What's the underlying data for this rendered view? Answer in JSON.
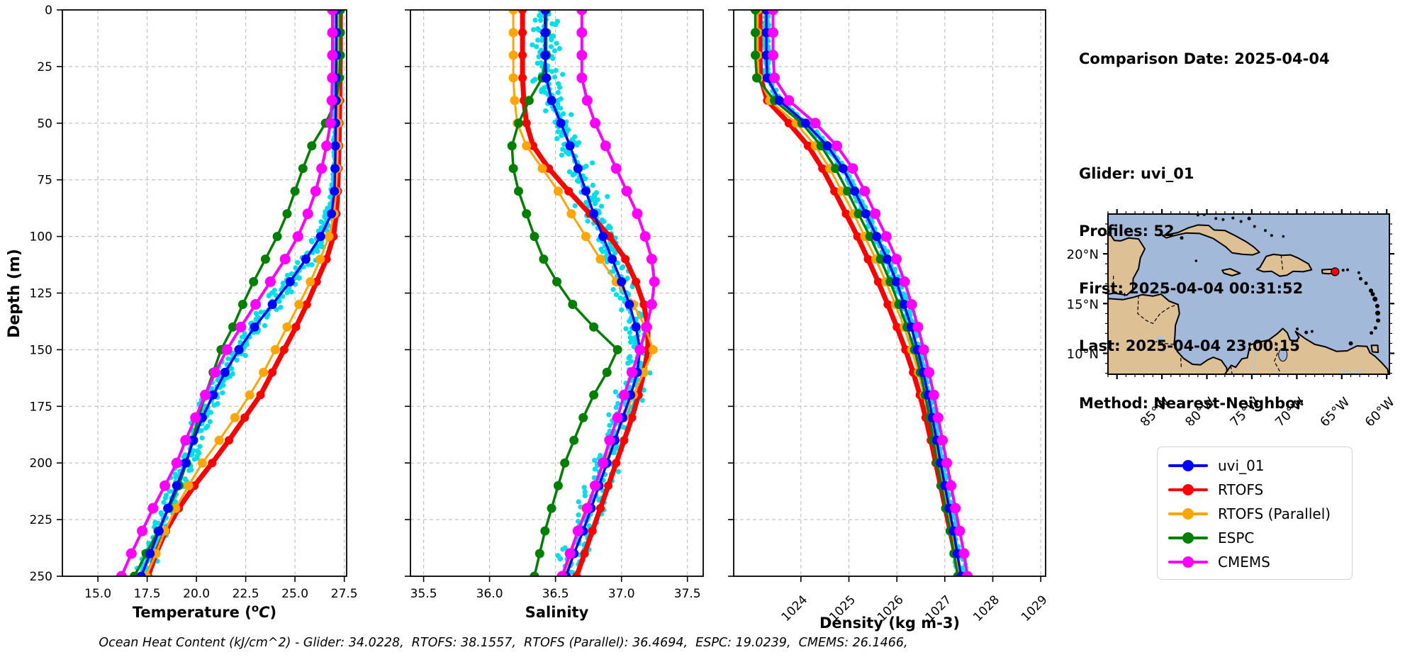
{
  "info_panel": {
    "comparison_date": "Comparison Date: 2025-04-04",
    "glider": "Glider: uvi_01",
    "profiles": "Profiles: 52",
    "first": "First: 2025-04-04 00:31:52",
    "last": "Last: 2025-04-04 23:00:15",
    "method": "Method: Nearest-Neighbor"
  },
  "legend": {
    "entries": [
      {
        "label": "uvi_01",
        "color": "#0000ff"
      },
      {
        "label": "RTOFS",
        "color": "#ff0000"
      },
      {
        "label": "RTOFS (Parallel)",
        "color": "#ffa500"
      },
      {
        "label": "ESPC",
        "color": "#008000"
      },
      {
        "label": "CMEMS",
        "color": "#ff00ff"
      }
    ]
  },
  "footer": {
    "caption": "Ocean Heat Content (kJ/cm^2) - Glider: 34.0228,  RTOFS: 38.1557,  RTOFS (Parallel): 36.4694,  ESPC: 19.0239,  CMEMS: 26.1466,"
  },
  "map": {
    "xtick_labels": [
      "85°W",
      "80°W",
      "75°W",
      "70°W",
      "65°W",
      "60°W"
    ],
    "xtick_values": [
      85,
      80,
      75,
      70,
      65,
      60
    ],
    "ytick_labels": [
      "20°N",
      "15°N",
      "10°N"
    ],
    "ytick_values": [
      20,
      15,
      10
    ],
    "ocean_color": "#a2b9da",
    "land_color": "#ddc094",
    "river_color": "#9ec8e8",
    "marker_color": "#ff0000",
    "marker_lon_w": 65.75,
    "marker_lat_n": 18.2
  },
  "chart_data": {
    "type": "line",
    "ylabel": "Depth (m)",
    "depth_lim": [
      0,
      250
    ],
    "depth_ticks": [
      0,
      25,
      50,
      75,
      100,
      125,
      150,
      175,
      200,
      225,
      250
    ],
    "depths": [
      0,
      10,
      20,
      30,
      40,
      50,
      60,
      70,
      80,
      90,
      100,
      110,
      120,
      130,
      140,
      150,
      160,
      170,
      180,
      190,
      200,
      210,
      220,
      230,
      240,
      250
    ],
    "scatter_color": "#00dfe8",
    "scatter_name": "glider-raw-profiles",
    "draw_order": [
      1,
      2,
      3,
      0,
      4
    ],
    "plots": [
      {
        "id": "temperature",
        "xlabel_parts": {
          "pre": "Temperature (",
          "sup": "o",
          "it": "C",
          "post": ")"
        },
        "xlim": [
          13.2,
          27.62
        ],
        "xticks": [
          15.0,
          17.5,
          20.0,
          22.5,
          25.0,
          27.5
        ],
        "xtick_labels": [
          "15.0",
          "17.5",
          "20.0",
          "22.5",
          "25.0",
          "27.5"
        ],
        "rotate_xticklabels": false,
        "scatter": {
          "s0": 0.08,
          "s1": 0.5
        },
        "series": [
          {
            "name": "uvi_01",
            "color": "#0000ff",
            "lw": 3.5,
            "mr": 6.5,
            "values": [
              27.1,
              27.1,
              27.1,
              27.08,
              27.08,
              27.06,
              27.05,
              27.03,
              27.0,
              26.85,
              26.3,
              25.55,
              24.75,
              23.85,
              22.95,
              22.15,
              21.45,
              20.85,
              20.3,
              19.85,
              19.45,
              19.0,
              18.55,
              18.1,
              17.65,
              17.2
            ]
          },
          {
            "name": "RTOFS",
            "color": "#ff0000",
            "lw": 7,
            "mr": 6,
            "values": [
              27.3,
              27.3,
              27.3,
              27.28,
              27.27,
              27.25,
              27.23,
              27.2,
              27.17,
              27.1,
              26.95,
              26.6,
              26.1,
              25.6,
              25.05,
              24.45,
              23.85,
              23.25,
              22.45,
              21.65,
              20.8,
              19.9,
              19.1,
              18.45,
              17.95,
              17.55
            ]
          },
          {
            "name": "RTOFS (Parallel)",
            "color": "#ffa500",
            "lw": 3,
            "mr": 6.5,
            "values": [
              27.22,
              27.22,
              27.22,
              27.21,
              27.2,
              27.19,
              27.17,
              27.14,
              27.08,
              26.98,
              26.72,
              26.28,
              25.78,
              25.2,
              24.6,
              24.0,
              23.4,
              22.7,
              21.95,
              21.15,
              20.3,
              19.6,
              18.95,
              18.4,
              17.95,
              17.45
            ]
          },
          {
            "name": "ESPC",
            "color": "#008000",
            "lw": 3.5,
            "mr": 6.5,
            "values": [
              27.3,
              27.3,
              27.3,
              27.25,
              27.1,
              26.55,
              25.85,
              25.4,
              25.0,
              24.6,
              24.1,
              23.5,
              22.9,
              22.35,
              21.85,
              21.25,
              20.85,
              20.45,
              20.1,
              19.8,
              19.5,
              19.1,
              18.6,
              18.05,
              17.45,
              16.85
            ]
          },
          {
            "name": "CMEMS",
            "color": "#ff00ff",
            "lw": 4,
            "mr": 7.5,
            "values": [
              26.9,
              26.9,
              26.9,
              26.89,
              26.87,
              26.8,
              26.6,
              26.35,
              26.05,
              25.65,
              25.15,
              24.5,
              23.75,
              23.0,
              22.25,
              21.55,
              20.95,
              20.45,
              19.95,
              19.45,
              19.0,
              18.4,
              17.8,
              17.25,
              16.7,
              16.2
            ]
          }
        ]
      },
      {
        "id": "salinity",
        "xlabel": "Salinity",
        "xlim": [
          35.4,
          37.62
        ],
        "xticks": [
          35.5,
          36.0,
          36.5,
          37.0,
          37.5
        ],
        "xtick_labels": [
          "35.5",
          "36.0",
          "36.5",
          "37.0",
          "37.5"
        ],
        "rotate_xticklabels": false,
        "scatter": {
          "s0": 0.1,
          "s1": 0.1
        },
        "series": [
          {
            "name": "uvi_01",
            "color": "#0000ff",
            "lw": 3.5,
            "mr": 6.5,
            "values": [
              36.42,
              36.42,
              36.42,
              36.43,
              36.47,
              36.54,
              36.61,
              36.67,
              36.73,
              36.79,
              36.86,
              36.93,
              37.0,
              37.06,
              37.11,
              37.14,
              37.12,
              37.07,
              37.01,
              36.95,
              36.89,
              36.83,
              36.77,
              36.71,
              36.64,
              36.58
            ]
          },
          {
            "name": "RTOFS",
            "color": "#ff0000",
            "lw": 7,
            "mr": 6,
            "values": [
              36.25,
              36.25,
              36.25,
              36.25,
              36.26,
              36.28,
              36.33,
              36.45,
              36.6,
              36.76,
              36.91,
              37.03,
              37.11,
              37.17,
              37.2,
              37.2,
              37.17,
              37.13,
              37.08,
              37.02,
              36.96,
              36.9,
              36.84,
              36.78,
              36.72,
              36.66
            ]
          },
          {
            "name": "RTOFS (Parallel)",
            "color": "#ffa500",
            "lw": 3,
            "mr": 6.5,
            "values": [
              36.18,
              36.18,
              36.18,
              36.18,
              36.19,
              36.21,
              36.28,
              36.4,
              36.52,
              36.62,
              36.73,
              36.84,
              36.96,
              37.09,
              37.18,
              37.24,
              37.17,
              37.09,
              37.02,
              36.95,
              36.87,
              36.8,
              36.73,
              36.67,
              36.62,
              36.57
            ]
          },
          {
            "name": "ESPC",
            "color": "#008000",
            "lw": 3.5,
            "mr": 6.5,
            "values": [
              36.43,
              36.43,
              36.43,
              36.4,
              36.3,
              36.22,
              36.17,
              36.18,
              36.22,
              36.28,
              36.34,
              36.41,
              36.51,
              36.63,
              36.79,
              36.97,
              36.89,
              36.79,
              36.71,
              36.64,
              36.57,
              36.52,
              36.47,
              36.42,
              36.38,
              36.34
            ]
          },
          {
            "name": "CMEMS",
            "color": "#ff00ff",
            "lw": 4,
            "mr": 7.5,
            "values": [
              36.7,
              36.7,
              36.7,
              36.7,
              36.74,
              36.8,
              36.88,
              36.96,
              37.04,
              37.12,
              37.18,
              37.23,
              37.25,
              37.23,
              37.19,
              37.14,
              37.08,
              37.02,
              36.97,
              36.91,
              36.86,
              36.8,
              36.74,
              36.67,
              36.61,
              36.55
            ]
          }
        ]
      },
      {
        "id": "density",
        "xlabel": "Density (kg m-3)",
        "xlim": [
          1022.6,
          1029.1
        ],
        "xticks": [
          1024,
          1025,
          1026,
          1027,
          1028,
          1029
        ],
        "xtick_labels": [
          "1024",
          "1025",
          "1026",
          "1027",
          "1028",
          "1029"
        ],
        "rotate_xticklabels": true,
        "scatter": {
          "s0": 0.06,
          "s1": 0.11
        },
        "series": [
          {
            "name": "uvi_01",
            "color": "#0000ff",
            "lw": 3.5,
            "mr": 6.5,
            "values": [
              1023.28,
              1023.28,
              1023.28,
              1023.3,
              1023.55,
              1024.1,
              1024.55,
              1024.88,
              1025.12,
              1025.35,
              1025.58,
              1025.8,
              1025.99,
              1026.15,
              1026.3,
              1026.43,
              1026.55,
              1026.65,
              1026.74,
              1026.83,
              1026.91,
              1027.0,
              1027.09,
              1027.18,
              1027.26,
              1027.34
            ]
          },
          {
            "name": "RTOFS",
            "color": "#ff0000",
            "lw": 7,
            "mr": 6,
            "values": [
              1023.15,
              1023.15,
              1023.15,
              1023.16,
              1023.3,
              1023.75,
              1024.15,
              1024.45,
              1024.7,
              1024.94,
              1025.18,
              1025.4,
              1025.61,
              1025.81,
              1026.0,
              1026.18,
              1026.34,
              1026.48,
              1026.6,
              1026.71,
              1026.81,
              1026.91,
              1027.01,
              1027.11,
              1027.21,
              1027.3
            ]
          },
          {
            "name": "RTOFS (Parallel)",
            "color": "#ffa500",
            "lw": 3,
            "mr": 6.5,
            "values": [
              1023.1,
              1023.1,
              1023.1,
              1023.12,
              1023.35,
              1023.9,
              1024.3,
              1024.6,
              1024.85,
              1025.1,
              1025.33,
              1025.56,
              1025.77,
              1025.97,
              1026.15,
              1026.31,
              1026.45,
              1026.57,
              1026.68,
              1026.78,
              1026.87,
              1026.96,
              1027.05,
              1027.14,
              1027.22,
              1027.3
            ]
          },
          {
            "name": "ESPC",
            "color": "#008000",
            "lw": 3.5,
            "mr": 6.5,
            "values": [
              1023.05,
              1023.05,
              1023.05,
              1023.08,
              1023.45,
              1024.02,
              1024.42,
              1024.72,
              1024.97,
              1025.2,
              1025.44,
              1025.66,
              1025.86,
              1026.04,
              1026.21,
              1026.37,
              1026.49,
              1026.59,
              1026.68,
              1026.76,
              1026.84,
              1026.93,
              1027.02,
              1027.11,
              1027.19,
              1027.27
            ]
          },
          {
            "name": "CMEMS",
            "color": "#ff00ff",
            "lw": 4,
            "mr": 7.5,
            "values": [
              1023.42,
              1023.42,
              1023.42,
              1023.45,
              1023.75,
              1024.3,
              1024.75,
              1025.08,
              1025.33,
              1025.55,
              1025.78,
              1025.99,
              1026.16,
              1026.31,
              1026.44,
              1026.56,
              1026.67,
              1026.77,
              1026.86,
              1026.95,
              1027.04,
              1027.13,
              1027.22,
              1027.31,
              1027.4,
              1027.47
            ]
          }
        ]
      }
    ]
  }
}
